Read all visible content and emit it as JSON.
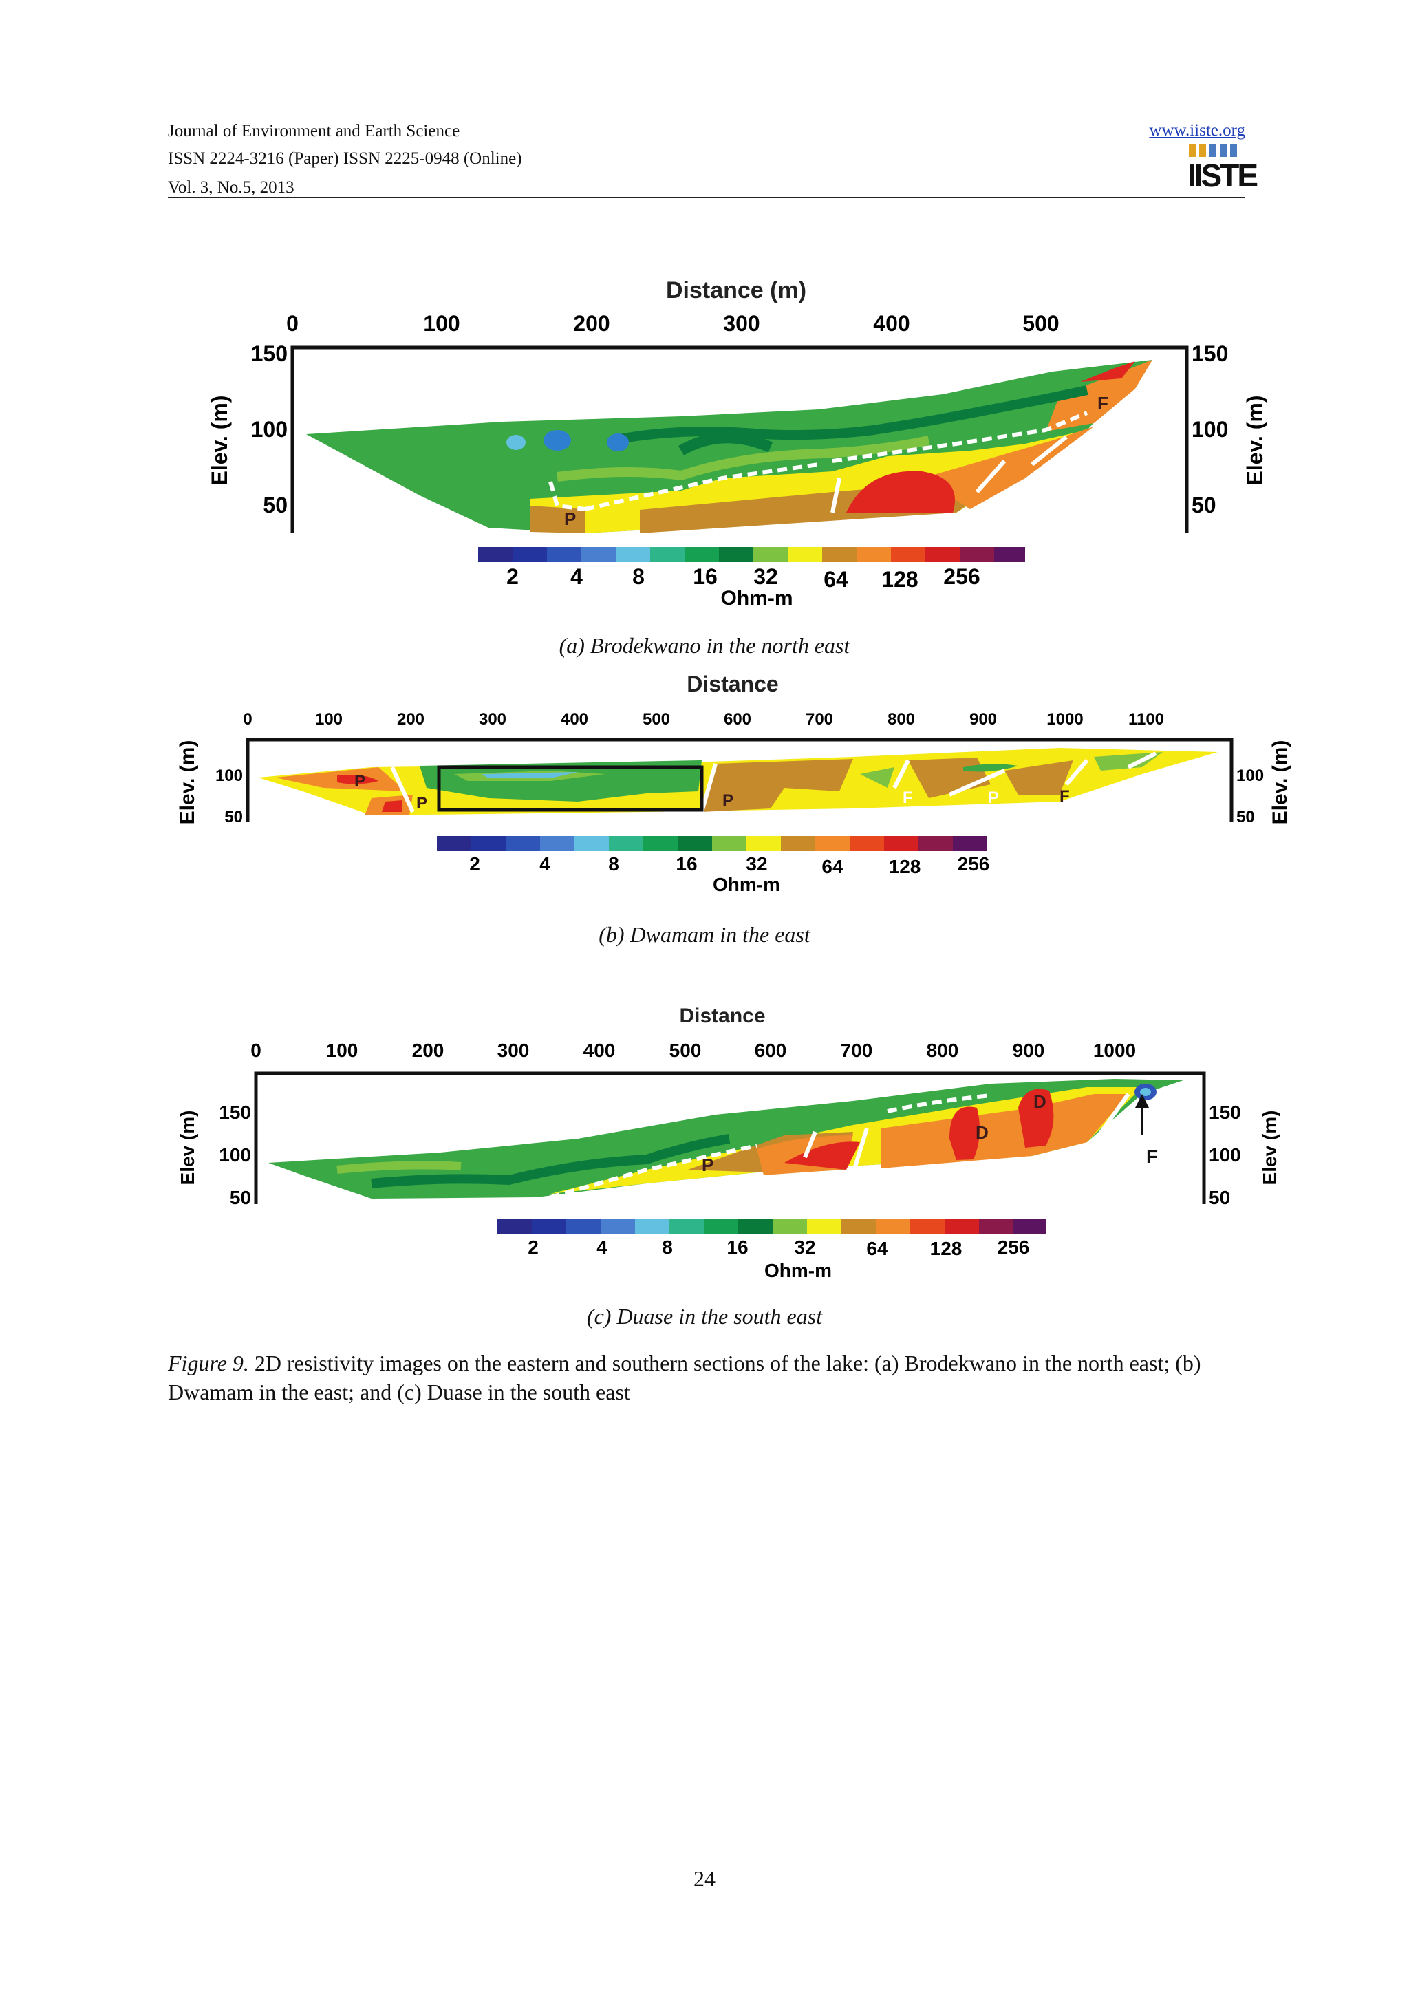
{
  "header": {
    "journal": "Journal of Environment and Earth Science",
    "issn": "ISSN 2224-3216 (Paper) ISSN 2225-0948 (Online)",
    "volume": "Vol. 3, No.5, 2013",
    "url": "www.iiste.org",
    "logo_text": "IISTE"
  },
  "figures": [
    {
      "id": "a",
      "subcaption": "(a) Brodekwano in the north east",
      "title": "Distance (m)",
      "ylabel": "Elev. (m)",
      "x_ticks": [
        "0",
        "100",
        "200",
        "300",
        "400",
        "500"
      ],
      "y_ticks": [
        "150",
        "100",
        "50"
      ],
      "scale_ticks": [
        "2",
        "4",
        "8",
        "16",
        "32",
        "64",
        "128",
        "256"
      ],
      "scale_unit": "Ohm-m",
      "zone_labels": [
        "P",
        "F"
      ]
    },
    {
      "id": "b",
      "subcaption": "(b) Dwamam in the east",
      "title": "Distance",
      "ylabel": "Elev. (m)",
      "x_ticks": [
        "0",
        "100",
        "200",
        "300",
        "400",
        "500",
        "600",
        "700",
        "800",
        "900",
        "1000",
        "1100"
      ],
      "y_ticks": [
        "100",
        "50"
      ],
      "scale_ticks": [
        "2",
        "4",
        "8",
        "16",
        "32",
        "64",
        "128",
        "256"
      ],
      "scale_unit": "Ohm-m",
      "zone_labels": [
        "P",
        "P",
        "P",
        "F",
        "P",
        "F"
      ]
    },
    {
      "id": "c",
      "subcaption": "(c) Duase in the south east",
      "title": "Distance",
      "ylabel": "Elev (m)",
      "x_ticks": [
        "0",
        "100",
        "200",
        "300",
        "400",
        "500",
        "600",
        "700",
        "800",
        "900",
        "1000"
      ],
      "y_ticks": [
        "150",
        "100",
        "50"
      ],
      "scale_ticks": [
        "2",
        "4",
        "8",
        "16",
        "32",
        "64",
        "128",
        "256"
      ],
      "scale_unit": "Ohm-m",
      "zone_labels": [
        "P",
        "D",
        "D",
        "F"
      ]
    }
  ],
  "caption": {
    "label": "Figure 9.",
    "text": " 2D resistivity images on the eastern and southern sections of the lake: (a) Brodekwano in the north east; (b) Dwamam in the east; and (c) Duase in the south east"
  },
  "page_number": "24",
  "colors": {
    "scale": [
      "#2a2a8a",
      "#24349e",
      "#2f55b8",
      "#4a7fcf",
      "#63c0e0",
      "#2eb58a",
      "#15a052",
      "#0a7a3a",
      "#7ec242",
      "#f2ee1a",
      "#c98a2a",
      "#f08a2a",
      "#e8481e",
      "#d42020",
      "#8a1a4a",
      "#5a1460"
    ],
    "green": "#39a845",
    "light_green": "#7ec242",
    "dark_green": "#0b7b3d",
    "yellow": "#f5ea12",
    "brown": "#c58a2c",
    "orange": "#f08a2a",
    "red": "#e0261f",
    "blue": "#2f7fd0"
  }
}
